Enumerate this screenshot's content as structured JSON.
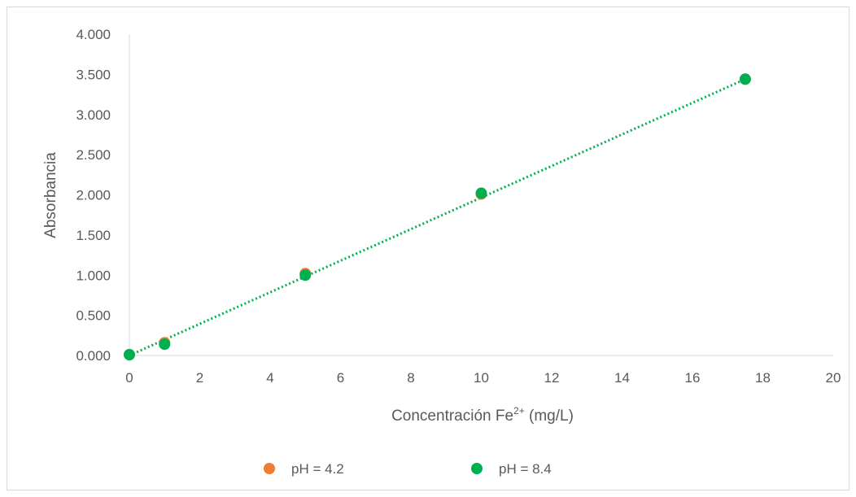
{
  "chart_data": {
    "type": "scatter",
    "title": "",
    "xlabel": "Concentración Fe",
    "xlabel_superscript": "2+",
    "xlabel_suffix": " (mg/L)",
    "ylabel": "Absorbancia",
    "xlim": [
      0,
      20
    ],
    "ylim": [
      0,
      4
    ],
    "x_ticks": [
      0,
      2,
      4,
      6,
      8,
      10,
      12,
      14,
      16,
      18,
      20
    ],
    "x_tick_labels": [
      "0",
      "2",
      "4",
      "6",
      "8",
      "10",
      "12",
      "14",
      "16",
      "18",
      "20"
    ],
    "y_ticks": [
      0,
      0.5,
      1,
      1.5,
      2,
      2.5,
      3,
      3.5,
      4
    ],
    "y_tick_labels": [
      "0.000",
      "0.500",
      "1.000",
      "1.500",
      "2.000",
      "2.500",
      "3.000",
      "3.500",
      "4.000"
    ],
    "grid": false,
    "legend_position": "bottom",
    "series": [
      {
        "name": "pH = 4.2",
        "color": "#ED7D31",
        "x": [
          0,
          1,
          5,
          10,
          17.5
        ],
        "y": [
          0.01,
          0.16,
          1.02,
          2.01,
          3.44
        ]
      },
      {
        "name": "pH = 8.4",
        "color": "#00B050",
        "x": [
          0,
          1,
          5,
          10,
          17.5
        ],
        "y": [
          0.01,
          0.14,
          1.0,
          2.02,
          3.44
        ]
      }
    ],
    "trendline": {
      "style": "dotted",
      "color": "#00B050",
      "x": [
        0,
        17.5
      ],
      "y": [
        0,
        3.44
      ]
    }
  }
}
